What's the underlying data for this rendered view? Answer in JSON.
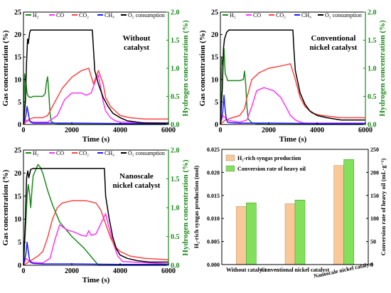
{
  "chart_data": [
    {
      "type": "line",
      "panel_label": "Without catalyst",
      "annotation": [
        "Without",
        "catalyst"
      ],
      "xlabel": "Time (s)",
      "ylabel_left": "Gas concentration (%)",
      "ylabel_right": "Hydrogen concentration (%)",
      "xlim": [
        0,
        6000
      ],
      "ylim_left": [
        0,
        25
      ],
      "ylim_right": [
        0,
        2.0
      ],
      "xticks": [
        "0",
        "2000",
        "4000",
        "6000"
      ],
      "yticks_left": [
        "0",
        "5",
        "10",
        "15",
        "20",
        "25"
      ],
      "yticks_right": [
        "0.0",
        "0.5",
        "1.0",
        "1.5",
        "2.0"
      ],
      "legend": [
        {
          "label": "H₂",
          "color": "#1a8a1a"
        },
        {
          "label": "CO",
          "color": "#ff33ff"
        },
        {
          "label": "CO₂",
          "color": "#ff4444"
        },
        {
          "label": "CH₄",
          "color": "#1a1aff"
        },
        {
          "label": "O₂ consumption",
          "color": "#000000"
        }
      ],
      "series": [
        {
          "name": "H₂",
          "axis": "right",
          "color": "#1a8a1a",
          "x": [
            0,
            50,
            100,
            150,
            200,
            300,
            400,
            600,
            800,
            900,
            950,
            1000,
            1050,
            1100,
            1150,
            1300,
            1600,
            2000,
            3000,
            6000
          ],
          "y": [
            0,
            0.9,
            0.75,
            0.55,
            0.5,
            0.48,
            0.5,
            0.5,
            0.5,
            0.55,
            0.75,
            0.85,
            0.55,
            0.2,
            0.05,
            0.02,
            0.01,
            0,
            0,
            0
          ]
        },
        {
          "name": "CO",
          "axis": "left",
          "color": "#ff33ff",
          "x": [
            0,
            100,
            200,
            400,
            1000,
            1400,
            1700,
            2000,
            2400,
            2600,
            2800,
            3000,
            3100,
            3200,
            3300,
            3400,
            3600,
            3800,
            4000,
            6000
          ],
          "y": [
            0,
            1,
            0.8,
            0.5,
            0.5,
            2,
            5.5,
            7,
            7,
            6.5,
            7,
            10,
            11,
            8,
            5,
            3,
            1.5,
            0.8,
            0.5,
            0.3
          ]
        },
        {
          "name": "CO₂",
          "axis": "left",
          "color": "#ff4444",
          "x": [
            0,
            200,
            400,
            800,
            1000,
            1300,
            1600,
            2000,
            2400,
            2700,
            2900,
            3100,
            3300,
            3400,
            3600,
            3800,
            4000,
            4400,
            5000,
            6000
          ],
          "y": [
            0,
            1,
            1.5,
            1.5,
            2,
            5,
            8,
            10.5,
            12,
            12.5,
            9,
            12,
            9,
            6,
            4,
            3,
            2,
            1.5,
            1.2,
            1.2
          ]
        },
        {
          "name": "CH₄",
          "axis": "left",
          "color": "#1a1aff",
          "x": [
            0,
            100,
            150,
            200,
            250,
            300,
            400,
            600,
            1000,
            2000,
            4000,
            6000
          ],
          "y": [
            0,
            2,
            4,
            2.5,
            1,
            0.5,
            0.3,
            0.3,
            0.3,
            0.3,
            0.2,
            0.2
          ]
        },
        {
          "name": "O₂ consumption",
          "axis": "left",
          "color": "#000000",
          "x": [
            0,
            80,
            130,
            170,
            200,
            260,
            300,
            400,
            2000,
            2850,
            2950,
            3100,
            3300,
            3500,
            3700,
            4000,
            4300,
            4700,
            5000,
            6000
          ],
          "y": [
            0,
            5,
            14,
            19,
            18,
            20.5,
            21,
            21,
            21,
            21,
            12,
            9,
            6,
            4,
            2.5,
            1.5,
            0.8,
            0.5,
            0.3,
            0.3
          ]
        }
      ]
    },
    {
      "type": "line",
      "panel_label": "Conventional nickel catalyst",
      "annotation": [
        "Conventional",
        "nickel catalyst"
      ],
      "xlabel": "Time (s)",
      "ylabel_left": "Gas concentration (%)",
      "ylabel_right": "Hydrogen concentration (%)",
      "xlim": [
        0,
        6000
      ],
      "ylim_left": [
        0,
        25
      ],
      "ylim_right": [
        0,
        2.0
      ],
      "xticks": [
        "0",
        "2000",
        "4000",
        "6000"
      ],
      "yticks_left": [
        "0",
        "5",
        "10",
        "15",
        "20",
        "25"
      ],
      "yticks_right": [
        "0.0",
        "0.5",
        "1.0",
        "1.5",
        "2.0"
      ],
      "legend": [
        {
          "label": "H₂",
          "color": "#1a8a1a"
        },
        {
          "label": "CO",
          "color": "#ff33ff"
        },
        {
          "label": "CO₂",
          "color": "#ff4444"
        },
        {
          "label": "CH₄",
          "color": "#1a1aff"
        },
        {
          "label": "O₂ consumption",
          "color": "#000000"
        }
      ],
      "series": [
        {
          "name": "H₂",
          "axis": "right",
          "color": "#1a8a1a",
          "x": [
            0,
            50,
            100,
            150,
            200,
            250,
            300,
            500,
            800,
            950,
            1000,
            1050,
            1100,
            1150,
            1300,
            1600,
            2000,
            6000
          ],
          "y": [
            0,
            1.2,
            1.05,
            1.35,
            0.9,
            0.85,
            0.78,
            0.78,
            0.78,
            0.8,
            0.95,
            0.7,
            0.3,
            0.1,
            0.03,
            0.01,
            0,
            0
          ]
        },
        {
          "name": "CO",
          "axis": "left",
          "color": "#ff33ff",
          "x": [
            0,
            100,
            200,
            300,
            400,
            800,
            1100,
            1300,
            1500,
            1800,
            2200,
            2500,
            2700,
            2900,
            3100,
            3300,
            3500,
            6000
          ],
          "y": [
            0,
            2,
            1.5,
            1,
            0.8,
            0.5,
            1,
            4,
            7.5,
            8.2,
            7.5,
            6,
            4,
            2,
            1,
            0.5,
            0.3,
            0.3
          ]
        },
        {
          "name": "CO₂",
          "axis": "left",
          "color": "#ff4444",
          "x": [
            0,
            200,
            500,
            800,
            1000,
            1100,
            1300,
            1600,
            2000,
            2500,
            2900,
            3100,
            3300,
            3500,
            3800,
            4200,
            5000,
            6000
          ],
          "y": [
            0,
            1,
            1.5,
            2,
            3.5,
            6,
            10,
            11.5,
            12.5,
            13,
            13.5,
            10,
            6,
            4,
            2.5,
            2,
            1.5,
            1.5
          ]
        },
        {
          "name": "CH₄",
          "axis": "left",
          "color": "#1a1aff",
          "x": [
            0,
            100,
            150,
            200,
            250,
            300,
            400,
            800,
            2000,
            4000,
            6000
          ],
          "y": [
            0,
            3,
            6.5,
            3,
            1,
            0.5,
            0.4,
            0.3,
            0.3,
            0.2,
            0.2
          ]
        },
        {
          "name": "O₂ consumption",
          "axis": "left",
          "color": "#000000",
          "x": [
            0,
            80,
            130,
            170,
            200,
            260,
            350,
            600,
            3000,
            3050,
            3100,
            3300,
            3500,
            3700,
            4000,
            4400,
            5000,
            6000
          ],
          "y": [
            0,
            8,
            17,
            19,
            19.5,
            20.5,
            21,
            21,
            21,
            16,
            12,
            7,
            4.5,
            3,
            2,
            1.5,
            1,
            1
          ]
        }
      ]
    },
    {
      "type": "line",
      "panel_label": "Nanoscale nickel catalyst",
      "annotation": [
        "Nanoscale",
        "nickel catalyst"
      ],
      "xlabel": "Time (s)",
      "ylabel_left": "Gas concentration (%)",
      "ylabel_right": "Hydrogen concentration (%)",
      "xlim": [
        0,
        6000
      ],
      "ylim_left": [
        0,
        25
      ],
      "ylim_right": [
        0,
        2.0
      ],
      "xticks": [
        "0",
        "2000",
        "4000",
        "6000"
      ],
      "yticks_left": [
        "0",
        "5",
        "10",
        "15",
        "20",
        "25"
      ],
      "yticks_right": [
        "0.0",
        "0.5",
        "1.0",
        "1.5",
        "2.0"
      ],
      "legend": [
        {
          "label": "H₂",
          "color": "#1a8a1a"
        },
        {
          "label": "CO",
          "color": "#ff33ff"
        },
        {
          "label": "CO₂",
          "color": "#ff4444"
        },
        {
          "label": "CH₄",
          "color": "#1a1aff"
        },
        {
          "label": "O₂ consumption",
          "color": "#000000"
        }
      ],
      "series": [
        {
          "name": "H₂",
          "axis": "right",
          "color": "#1a8a1a",
          "x": [
            0,
            80,
            150,
            200,
            250,
            300,
            350,
            400,
            500,
            600,
            700,
            800,
            900,
            1000,
            1200,
            1500,
            2000,
            2500,
            2800,
            3000,
            3100,
            6000
          ],
          "y": [
            0,
            0.6,
            1.2,
            1.4,
            1.25,
            1.0,
            1.3,
            1.55,
            1.65,
            1.75,
            1.7,
            1.6,
            1.45,
            1.3,
            1.05,
            0.75,
            0.5,
            0.3,
            0.15,
            0.05,
            0,
            0
          ]
        },
        {
          "name": "CO",
          "axis": "left",
          "color": "#ff33ff",
          "x": [
            0,
            100,
            200,
            400,
            800,
            1100,
            1300,
            1500,
            1700,
            1900,
            2100,
            2400,
            2600,
            2700,
            2800,
            3000,
            3200,
            3400,
            3500,
            3700,
            3900,
            4100,
            6000
          ],
          "y": [
            0,
            1.5,
            1,
            0.6,
            0.5,
            1.5,
            5.5,
            8.8,
            8,
            7.5,
            7.2,
            6.5,
            6.3,
            7.5,
            6.5,
            6.8,
            9,
            11.2,
            9,
            5,
            2,
            0.8,
            0.3
          ]
        },
        {
          "name": "CO₂",
          "axis": "left",
          "color": "#ff4444",
          "x": [
            0,
            300,
            600,
            800,
            1000,
            1200,
            1400,
            1600,
            2000,
            2600,
            3000,
            3200,
            3400,
            3600,
            3800,
            4000,
            4400,
            5000,
            6000
          ],
          "y": [
            0,
            1,
            2,
            3,
            6,
            10,
            12.5,
            13.5,
            14,
            14,
            13.5,
            12,
            9,
            6,
            4,
            3,
            2,
            1.5,
            1.2
          ]
        },
        {
          "name": "CH₄",
          "axis": "left",
          "color": "#1a1aff",
          "x": [
            0,
            100,
            150,
            200,
            250,
            300,
            400,
            800,
            2000,
            4000,
            6000
          ],
          "y": [
            0,
            2.5,
            5,
            3,
            1.2,
            0.6,
            0.4,
            0.3,
            0.3,
            0.2,
            0.2
          ]
        },
        {
          "name": "O₂ consumption",
          "axis": "left",
          "color": "#000000",
          "x": [
            0,
            80,
            130,
            180,
            220,
            300,
            400,
            1000,
            3350,
            3400,
            3550,
            3700,
            3850,
            4000,
            4300,
            4700,
            5200,
            6000
          ],
          "y": [
            0,
            10,
            19,
            20.5,
            19,
            20.8,
            21,
            21,
            21,
            15,
            10,
            6,
            3.5,
            2.2,
            1.5,
            1,
            0.7,
            0.7
          ]
        }
      ]
    },
    {
      "type": "bar",
      "categories": [
        "Without catalyst",
        "Conventional nickel catalyst",
        "Nanoscale nickel catalyst"
      ],
      "ylabel_left": "H₂-rich syngas production (mol)",
      "ylabel_right": "Conversion rate of heavy oil (mL·g⁻¹)",
      "ylim_left": [
        0,
        0.025
      ],
      "ylim_right": [
        0,
        250
      ],
      "yticks_left": [
        "0.000",
        "0.005",
        "0.010",
        "0.015",
        "0.020",
        "0.025"
      ],
      "yticks_right": [
        "0",
        "50",
        "100",
        "150",
        "200",
        "250"
      ],
      "legend_position": "top-left",
      "series": [
        {
          "name": "H₂-rich syngas production",
          "axis": "left",
          "color": "#f9c898",
          "values": [
            0.0126,
            0.0132,
            0.0215
          ]
        },
        {
          "name": "Conversion rate of heavy oil",
          "axis": "right",
          "color": "#82e05a",
          "values": [
            134,
            140,
            228
          ]
        }
      ]
    }
  ]
}
